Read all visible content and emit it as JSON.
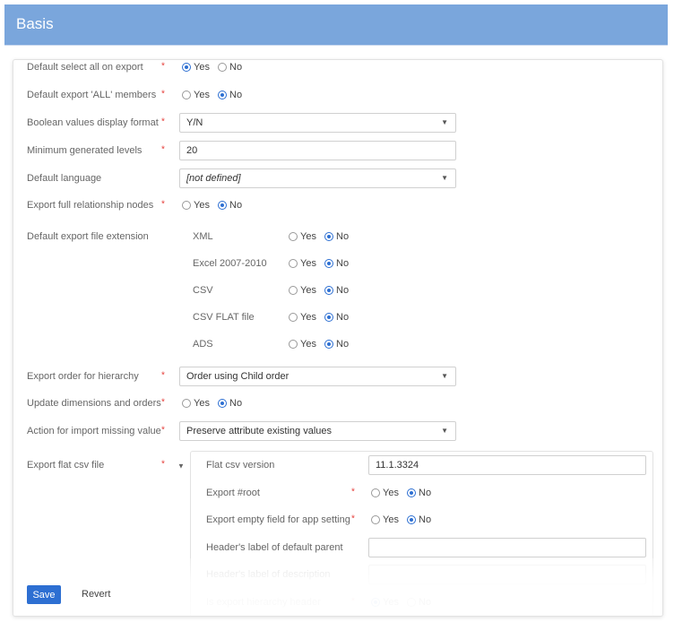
{
  "header": {
    "title": "Basis"
  },
  "rows": [
    {
      "label": "Default select all on export",
      "required": true,
      "type": "radio",
      "value": "Yes"
    },
    {
      "label": "Default export 'ALL' members",
      "required": true,
      "type": "radio",
      "value": "No"
    },
    {
      "label": "Boolean values display format",
      "required": true,
      "type": "select",
      "value": "Y/N"
    },
    {
      "label": "Minimum generated levels",
      "required": true,
      "type": "input",
      "value": "20"
    },
    {
      "label": "Default language",
      "required": false,
      "type": "select",
      "value": "[not defined]"
    },
    {
      "label": "Export full relationship nodes",
      "required": true,
      "type": "radio",
      "value": "No"
    }
  ],
  "file_ext": {
    "label": "Default export file extension",
    "items": [
      {
        "label": "XML",
        "value": "No"
      },
      {
        "label": "Excel 2007-2010",
        "value": "No"
      },
      {
        "label": "CSV",
        "value": "No"
      },
      {
        "label": "CSV FLAT file",
        "value": "No"
      },
      {
        "label": "ADS",
        "value": "No"
      }
    ]
  },
  "rows2": [
    {
      "label": "Export order for hierarchy",
      "required": true,
      "type": "select",
      "value": "Order using Child order"
    },
    {
      "label": "Update dimensions and orders",
      "required": true,
      "type": "radio",
      "value": "No"
    },
    {
      "label": "Action for import missing value",
      "required": true,
      "type": "select",
      "value": "Preserve attribute existing values"
    }
  ],
  "flat_csv": {
    "label": "Export flat csv file",
    "required": true,
    "items": [
      {
        "label": "Flat csv version",
        "required": false,
        "type": "input",
        "value": "11.1.3324"
      },
      {
        "label": "Export #root",
        "required": true,
        "type": "radio",
        "value": "No"
      },
      {
        "label": "Export empty field for app setting",
        "required": true,
        "type": "radio",
        "value": "No"
      },
      {
        "label": "Header's label of default parent",
        "required": false,
        "type": "input",
        "value": ""
      },
      {
        "label": "Header's label of description",
        "required": false,
        "type": "input",
        "value": ""
      },
      {
        "label": "Is export hierarchy header",
        "required": true,
        "type": "radio",
        "value": "Yes"
      }
    ]
  },
  "radio_labels": {
    "yes": "Yes",
    "no": "No"
  },
  "footer": {
    "save": "Save",
    "revert": "Revert"
  },
  "colors": {
    "header": "#7aa6dc",
    "accent": "#2d6fd2",
    "required": "#e53935"
  }
}
